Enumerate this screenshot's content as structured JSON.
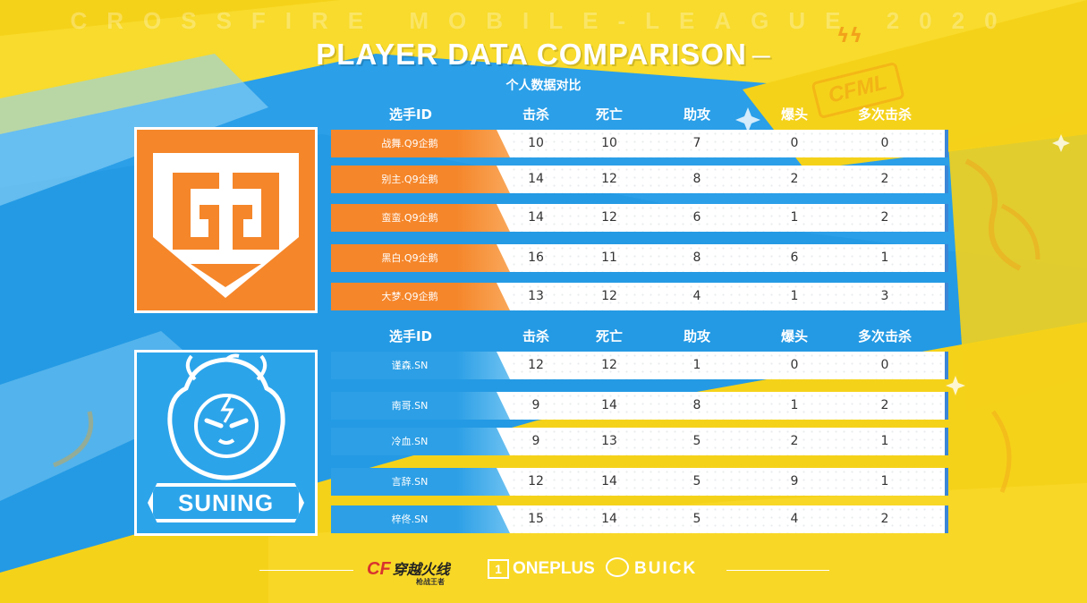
{
  "league_title": "CROSSFIRE MOBILE-LEAGUE 2020",
  "title": "PLAYER DATA COMPARISON",
  "title_dash": "—",
  "subtitle": "个人数据对比",
  "badge_text": "CFML",
  "bolts": "ϟϟ",
  "columns": [
    "选手ID",
    "击杀",
    "死亡",
    "助攻",
    "爆头",
    "多次击杀"
  ],
  "teams": [
    {
      "name": "Q9企鹅",
      "logo_icon": "q9-shield-logo",
      "color": "#f5862a",
      "players": [
        {
          "id": "战舞.Q9企鹅",
          "kills": "10",
          "deaths": "10",
          "assists": "7",
          "headshots": "0",
          "multi_kills": "0"
        },
        {
          "id": "别主.Q9企鹅",
          "kills": "14",
          "deaths": "12",
          "assists": "8",
          "headshots": "2",
          "multi_kills": "2"
        },
        {
          "id": "蛮蛮.Q9企鹅",
          "kills": "14",
          "deaths": "12",
          "assists": "6",
          "headshots": "1",
          "multi_kills": "2"
        },
        {
          "id": "黑白.Q9企鹅",
          "kills": "16",
          "deaths": "11",
          "assists": "8",
          "headshots": "6",
          "multi_kills": "1"
        },
        {
          "id": "大梦.Q9企鹅",
          "kills": "13",
          "deaths": "12",
          "assists": "4",
          "headshots": "1",
          "multi_kills": "3"
        }
      ]
    },
    {
      "name": "SUNING",
      "logo_text": "SUNING",
      "logo_icon": "suning-lion-logo",
      "color": "#2ca4ea",
      "players": [
        {
          "id": "谨森.SN",
          "kills": "12",
          "deaths": "12",
          "assists": "1",
          "headshots": "0",
          "multi_kills": "0"
        },
        {
          "id": "南哥.SN",
          "kills": "9",
          "deaths": "14",
          "assists": "8",
          "headshots": "1",
          "multi_kills": "2"
        },
        {
          "id": "冷血.SN",
          "kills": "9",
          "deaths": "13",
          "assists": "5",
          "headshots": "2",
          "multi_kills": "1"
        },
        {
          "id": "言辞.SN",
          "kills": "12",
          "deaths": "14",
          "assists": "5",
          "headshots": "9",
          "multi_kills": "1"
        },
        {
          "id": "梓佟.SN",
          "kills": "15",
          "deaths": "14",
          "assists": "5",
          "headshots": "4",
          "multi_kills": "2"
        }
      ]
    }
  ],
  "sponsors": {
    "crossfire_logo": "CF",
    "crossfire_cn": "穿越火线",
    "crossfire_sub": "枪战王者",
    "oneplus_box": "1",
    "oneplus": "ONEPLUS",
    "buick": "BUICK"
  }
}
